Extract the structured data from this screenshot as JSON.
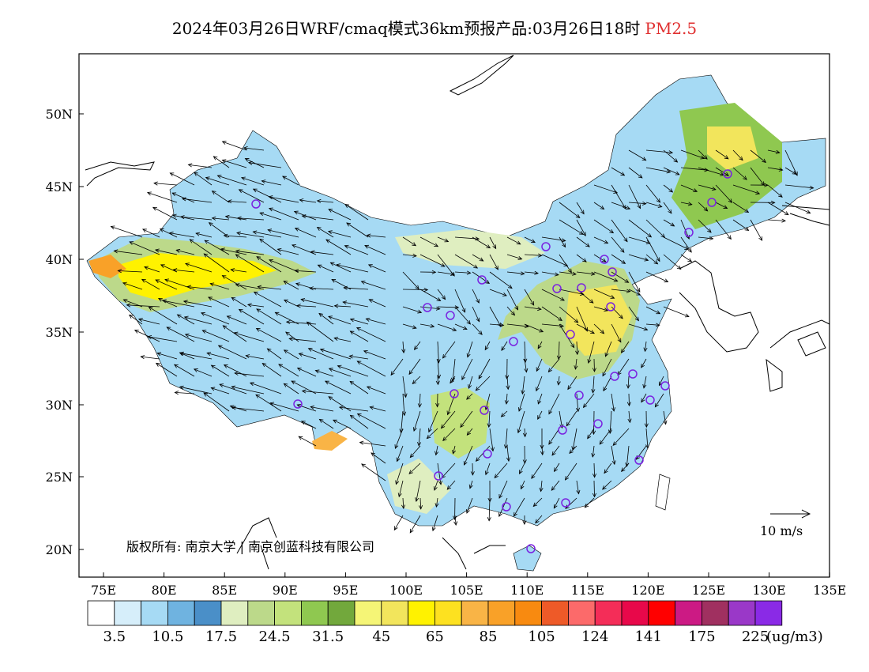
{
  "title": {
    "main": "2024年03月26日WRF/cmaq模式36km预报产品:03月26日18时",
    "variable": "PM2.5"
  },
  "map": {
    "lat_ticks": [
      "50N",
      "45N",
      "40N",
      "35N",
      "30N",
      "25N",
      "20N"
    ],
    "lon_ticks": [
      "75E",
      "80E",
      "85E",
      "90E",
      "95E",
      "100E",
      "105E",
      "110E",
      "115E",
      "120E",
      "125E",
      "130E",
      "135E"
    ],
    "lat_range": [
      18,
      54
    ],
    "lon_range": [
      73,
      135
    ],
    "copyright": "版权所有: 南京大学 | 南京创蓝科技有限公司",
    "wind_reference": "10 m/s"
  },
  "colorbar": {
    "colors": [
      "#ffffff",
      "#d6eefa",
      "#a6daf4",
      "#6fb3e0",
      "#4a8fc8",
      "#dfeec0",
      "#bcd98a",
      "#c3e27c",
      "#8fc850",
      "#72a83c",
      "#f5f576",
      "#f2e55c",
      "#fff200",
      "#fde120",
      "#f9b446",
      "#f9a128",
      "#f88a10",
      "#ee5a28",
      "#fc6a6a",
      "#f42d58",
      "#e8084a",
      "#ff0000",
      "#cc1a84",
      "#a03060",
      "#9a38c8",
      "#8a2ae6"
    ],
    "labels": [
      "3.5",
      "10.5",
      "17.5",
      "24.5",
      "31.5",
      "45",
      "65",
      "85",
      "105",
      "124",
      "141",
      "175",
      "225"
    ],
    "unit": "(ug/m3)"
  }
}
